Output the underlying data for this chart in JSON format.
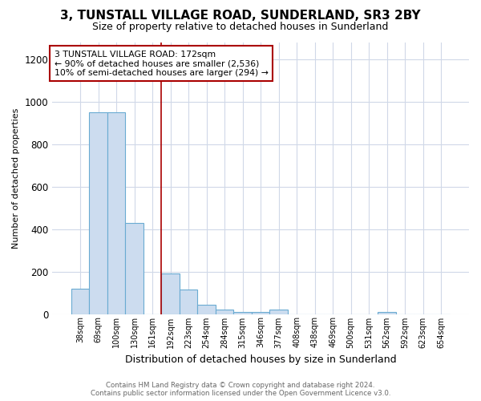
{
  "title": "3, TUNSTALL VILLAGE ROAD, SUNDERLAND, SR3 2BY",
  "subtitle": "Size of property relative to detached houses in Sunderland",
  "xlabel": "Distribution of detached houses by size in Sunderland",
  "ylabel": "Number of detached properties",
  "footer_line1": "Contains HM Land Registry data © Crown copyright and database right 2024.",
  "footer_line2": "Contains public sector information licensed under the Open Government Licence v3.0.",
  "annotation_line1": "3 TUNSTALL VILLAGE ROAD: 172sqm",
  "annotation_line2": "← 90% of detached houses are smaller (2,536)",
  "annotation_line3": "10% of semi-detached houses are larger (294) →",
  "categories": [
    "38sqm",
    "69sqm",
    "100sqm",
    "130sqm",
    "161sqm",
    "192sqm",
    "223sqm",
    "254sqm",
    "284sqm",
    "315sqm",
    "346sqm",
    "377sqm",
    "408sqm",
    "438sqm",
    "469sqm",
    "500sqm",
    "531sqm",
    "562sqm",
    "592sqm",
    "623sqm",
    "654sqm"
  ],
  "values": [
    120,
    950,
    950,
    430,
    0,
    190,
    115,
    45,
    20,
    8,
    8,
    20,
    0,
    0,
    0,
    0,
    0,
    10,
    0,
    0,
    0
  ],
  "bar_color": "#ccdcef",
  "bar_edgecolor": "#6aabd2",
  "vline_x_index": 5,
  "vline_color": "#aa0000",
  "ylim": [
    0,
    1280
  ],
  "yticks": [
    0,
    200,
    400,
    600,
    800,
    1000,
    1200
  ],
  "background_color": "#ffffff",
  "plot_bg_color": "#ffffff",
  "grid_color": "#d0d8e8",
  "annotation_box_edgecolor": "#aa0000",
  "title_fontsize": 11,
  "subtitle_fontsize": 9
}
